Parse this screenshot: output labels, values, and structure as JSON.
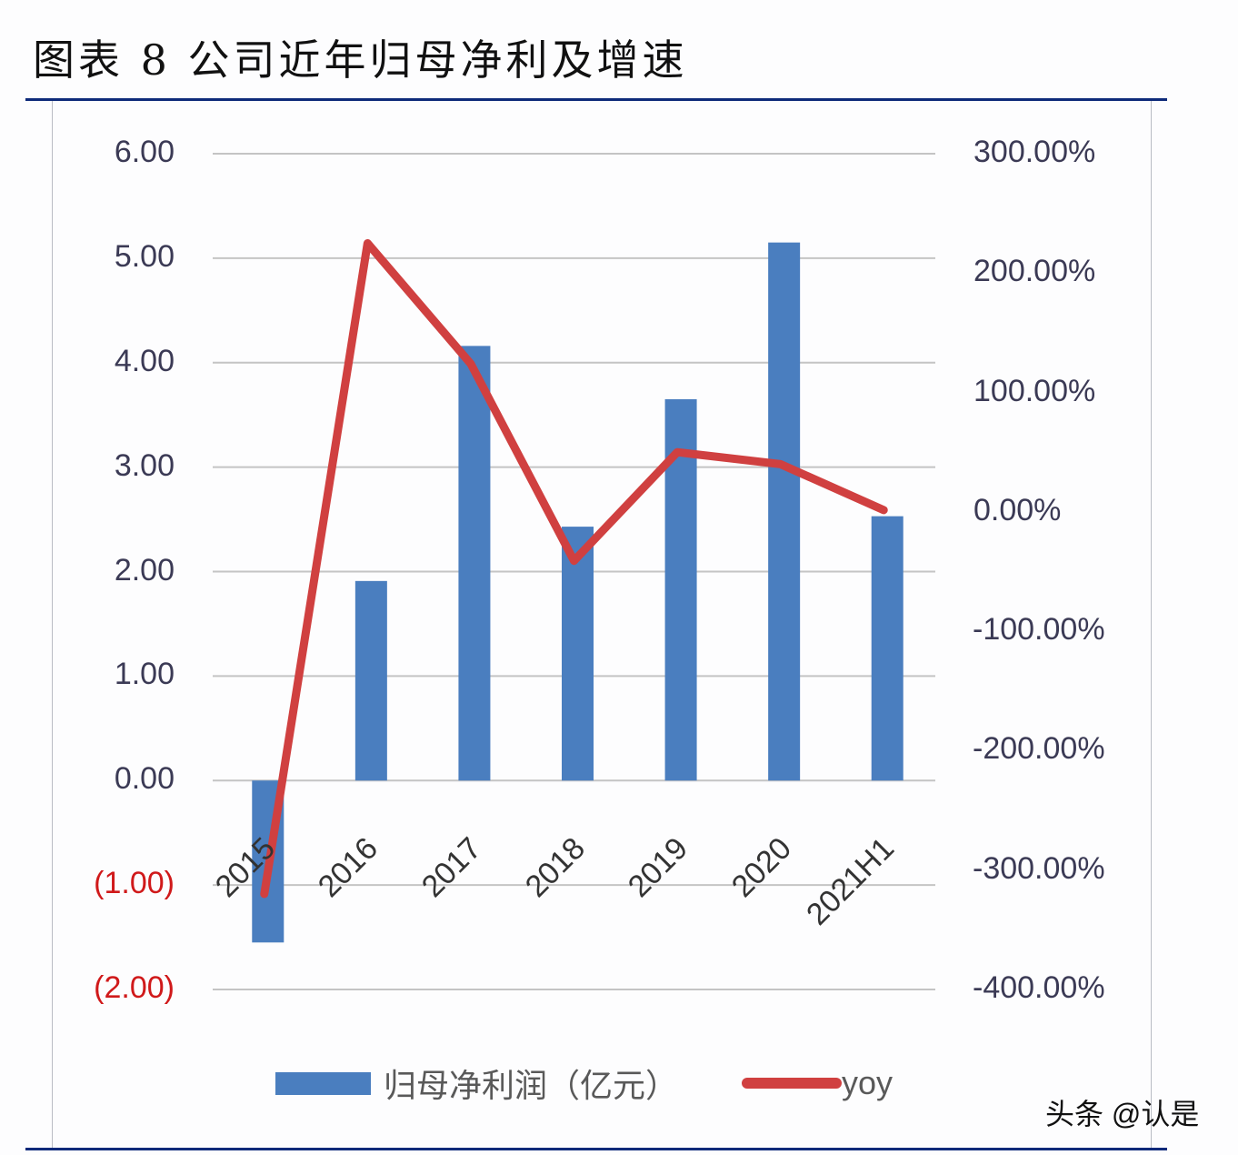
{
  "header": {
    "title": "图表 8 公司近年归母净利及增速"
  },
  "watermark": "头条 @认是",
  "legend": {
    "bar_label": "归母净利润（亿元）",
    "line_label": "yoy"
  },
  "colors": {
    "bar": "#4a7ebf",
    "line": "#d04040",
    "negative_tick": "#d0191a",
    "rule": "#0e2a7a"
  },
  "axes": {
    "left_ticks": [
      "6.00",
      "5.00",
      "4.00",
      "3.00",
      "2.00",
      "1.00",
      "0.00",
      "(1.00)",
      "(2.00)"
    ],
    "right_ticks": [
      "300.00%",
      "200.00%",
      "100.00%",
      "0.00%",
      "-100.00%",
      "-200.00%",
      "-300.00%",
      "-400.00%"
    ],
    "x_ticks": [
      "2015",
      "2016",
      "2017",
      "2018",
      "2019",
      "2020",
      "2021H1"
    ]
  },
  "chart_data": {
    "type": "bar",
    "title": "图表 8 公司近年归母净利及增速",
    "categories": [
      "2015",
      "2016",
      "2017",
      "2018",
      "2019",
      "2020",
      "2021H1"
    ],
    "series": [
      {
        "name": "归母净利润（亿元）",
        "type": "bar",
        "axis": "left",
        "values": [
          -1.55,
          1.91,
          4.16,
          2.43,
          3.65,
          5.15,
          2.53
        ]
      },
      {
        "name": "yoy",
        "type": "line",
        "axis": "right",
        "unit": "%",
        "values": [
          -320,
          225,
          124,
          -41,
          50,
          40,
          1.5
        ]
      }
    ],
    "xlabel": "",
    "ylabel": "归母净利润（亿元）",
    "y2label": "yoy",
    "ylim": [
      -2,
      6
    ],
    "y2lim": [
      -400,
      300
    ],
    "grid": true,
    "legend_position": "bottom"
  }
}
